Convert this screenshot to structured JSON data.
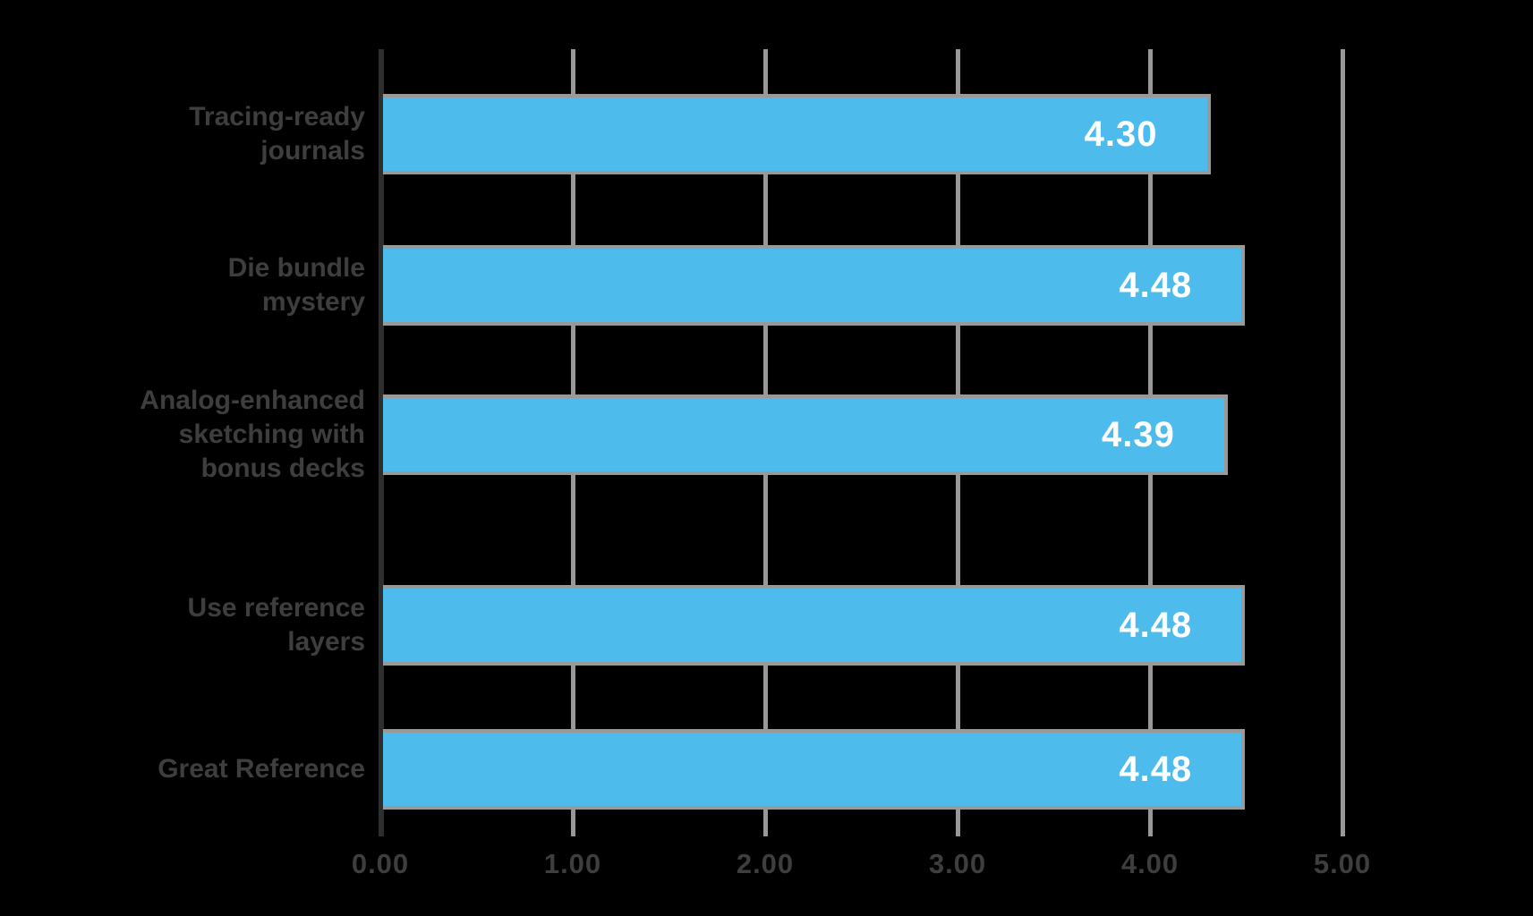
{
  "page": {
    "background": "#000000",
    "title": ""
  },
  "chart_data": {
    "type": "bar",
    "orientation": "horizontal",
    "title": "",
    "xlabel": "",
    "ylabel": "",
    "categories": [
      "Tracing-ready\njournals",
      "Die bundle\nmystery",
      "Analog-enhanced\nsketching with\nbonus decks",
      "Use reference\nlayers",
      "Great Reference"
    ],
    "values": [
      4.3,
      4.48,
      4.39,
      4.48,
      4.48
    ],
    "value_labels": [
      "4.30",
      "4.48",
      "4.39",
      "4.48",
      "4.48"
    ],
    "xticks": [
      "0.00",
      "1.00",
      "2.00",
      "3.00",
      "4.00",
      "5.00"
    ],
    "xtick_values": [
      0,
      1,
      2,
      3,
      4,
      5
    ],
    "xlim": [
      0,
      5
    ],
    "grid": true,
    "legend": false,
    "bar_color": "#4DBBEC",
    "bar_edge_color": "#999999",
    "gridline_color": "#989898",
    "zero_axis_color": "#2e2e2e",
    "category_label_color": "#3E3E3E",
    "tick_label_color": "#3E3E3E",
    "value_text_color": "#FFFFFF",
    "background_color": "#000000"
  }
}
